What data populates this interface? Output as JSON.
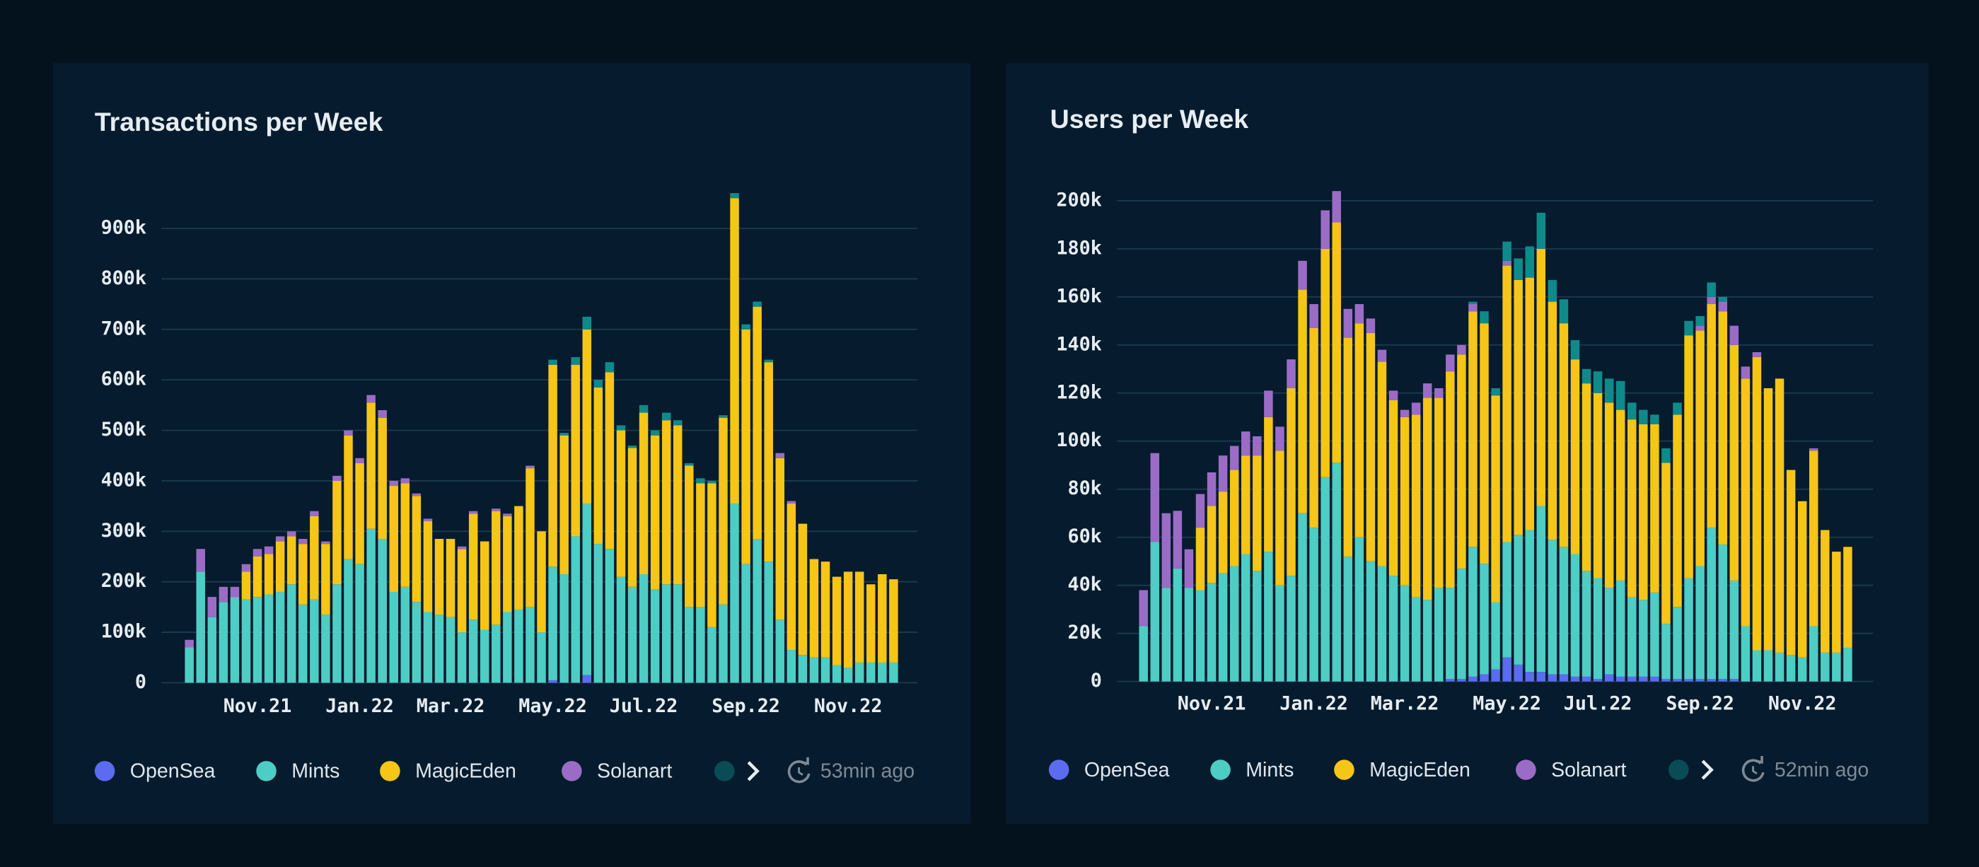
{
  "chart_data": [
    {
      "type": "bar",
      "stacked": true,
      "title": "Transactions per Week",
      "updated": "53min ago",
      "categories": [
        null,
        null,
        null,
        "Nov.21",
        null,
        null,
        null,
        null,
        null,
        null,
        null,
        null,
        "Jan.22",
        null,
        null,
        null,
        null,
        null,
        null,
        null,
        "Mar.22",
        null,
        null,
        null,
        null,
        null,
        null,
        null,
        null,
        "May.22",
        null,
        null,
        null,
        null,
        null,
        null,
        null,
        "Jul.22",
        null,
        null,
        null,
        null,
        null,
        null,
        null,
        null,
        "Sep.22",
        null,
        null,
        null,
        null,
        null,
        null,
        null,
        null,
        "Nov.22",
        null,
        null,
        null,
        null,
        null,
        null,
        null
      ],
      "ylim": [
        0,
        1000000
      ],
      "yticks": [
        0,
        {
          "value": 100000,
          "label": "100k"
        },
        {
          "value": 200000,
          "label": "200k"
        },
        {
          "value": 300000,
          "label": "300k"
        },
        {
          "value": 400000,
          "label": "400k"
        },
        {
          "value": 500000,
          "label": "500k"
        },
        {
          "value": 600000,
          "label": "600k"
        },
        {
          "value": 700000,
          "label": "700k"
        },
        {
          "value": 800000,
          "label": "800k"
        },
        {
          "value": 900000,
          "label": "900k"
        }
      ],
      "grid": true,
      "series": [
        {
          "name": "OpenSea",
          "color": "#5b6cf0",
          "values": [
            0,
            0,
            0,
            0,
            0,
            0,
            0,
            0,
            0,
            0,
            0,
            0,
            0,
            0,
            0,
            0,
            0,
            0,
            0,
            0,
            0,
            0,
            0,
            0,
            0,
            0,
            0,
            0,
            0,
            0,
            0,
            0,
            5000,
            0,
            0,
            15000,
            0,
            0,
            0,
            0,
            0,
            0,
            0,
            0,
            0,
            0,
            0,
            0,
            0,
            0,
            0,
            0,
            0,
            0,
            0,
            0,
            0,
            0,
            0,
            0,
            0,
            0,
            0
          ]
        },
        {
          "name": "Mints",
          "color": "#4ecdc4",
          "values": [
            70000,
            220000,
            130000,
            160000,
            170000,
            165000,
            170000,
            175000,
            180000,
            195000,
            155000,
            165000,
            135000,
            195000,
            245000,
            235000,
            305000,
            285000,
            180000,
            190000,
            160000,
            140000,
            135000,
            130000,
            100000,
            125000,
            105000,
            115000,
            140000,
            145000,
            150000,
            100000,
            225000,
            215000,
            290000,
            340000,
            275000,
            265000,
            210000,
            190000,
            215000,
            185000,
            195000,
            195000,
            150000,
            150000,
            110000,
            155000,
            355000,
            235000,
            285000,
            240000,
            125000,
            65000,
            55000,
            50000,
            50000,
            35000,
            30000,
            40000,
            40000,
            40000,
            40000
          ]
        },
        {
          "name": "MagicEden",
          "color": "#f5c518",
          "values": [
            0,
            0,
            0,
            0,
            0,
            55000,
            80000,
            80000,
            100000,
            95000,
            120000,
            165000,
            140000,
            205000,
            245000,
            200000,
            250000,
            240000,
            210000,
            205000,
            210000,
            180000,
            150000,
            155000,
            165000,
            210000,
            175000,
            225000,
            190000,
            205000,
            275000,
            200000,
            400000,
            275000,
            340000,
            345000,
            310000,
            350000,
            290000,
            275000,
            320000,
            305000,
            325000,
            315000,
            280000,
            245000,
            285000,
            370000,
            605000,
            465000,
            460000,
            395000,
            320000,
            290000,
            260000,
            195000,
            190000,
            175000,
            190000,
            180000,
            155000,
            175000,
            165000
          ]
        },
        {
          "name": "Solanart",
          "color": "#9b6cc6",
          "values": [
            15000,
            45000,
            40000,
            30000,
            20000,
            15000,
            15000,
            15000,
            10000,
            10000,
            10000,
            10000,
            5000,
            10000,
            10000,
            10000,
            15000,
            15000,
            10000,
            10000,
            5000,
            5000,
            0,
            0,
            5000,
            5000,
            0,
            5000,
            5000,
            0,
            5000,
            0,
            0,
            0,
            0,
            0,
            0,
            0,
            0,
            0,
            0,
            0,
            0,
            0,
            0,
            0,
            0,
            0,
            0,
            0,
            0,
            0,
            10000,
            5000,
            0,
            0,
            0,
            0,
            0,
            0,
            0,
            0,
            0
          ]
        },
        {
          "color": "#0f8a8a",
          "values": [
            0,
            0,
            0,
            0,
            0,
            0,
            0,
            0,
            0,
            0,
            0,
            0,
            0,
            0,
            0,
            0,
            0,
            0,
            0,
            0,
            0,
            0,
            0,
            0,
            0,
            0,
            0,
            0,
            0,
            0,
            0,
            0,
            10000,
            5000,
            15000,
            25000,
            15000,
            20000,
            10000,
            5000,
            15000,
            10000,
            15000,
            10000,
            5000,
            10000,
            5000,
            5000,
            10000,
            10000,
            10000,
            5000,
            0,
            0,
            0,
            0,
            0,
            0,
            0,
            0,
            0,
            0,
            0
          ]
        }
      ]
    },
    {
      "type": "bar",
      "stacked": true,
      "title": "Users per Week",
      "updated": "52min ago",
      "categories": [
        null,
        null,
        null,
        "Nov.21",
        null,
        null,
        null,
        null,
        null,
        null,
        null,
        null,
        "Jan.22",
        null,
        null,
        null,
        null,
        null,
        null,
        null,
        "Mar.22",
        null,
        null,
        null,
        null,
        null,
        null,
        null,
        null,
        "May.22",
        null,
        null,
        null,
        null,
        null,
        null,
        null,
        "Jul.22",
        null,
        null,
        null,
        null,
        null,
        null,
        null,
        null,
        "Sep.22",
        null,
        null,
        null,
        null,
        null,
        null,
        null,
        null,
        "Nov.22",
        null,
        null,
        null,
        null,
        null,
        null,
        null
      ],
      "ylim": [
        0,
        210000
      ],
      "yticks": [
        0,
        {
          "value": 20000,
          "label": "20k"
        },
        {
          "value": 40000,
          "label": "40k"
        },
        {
          "value": 60000,
          "label": "60k"
        },
        {
          "value": 80000,
          "label": "80k"
        },
        {
          "value": 100000,
          "label": "100k"
        },
        {
          "value": 120000,
          "label": "120k"
        },
        {
          "value": 140000,
          "label": "140k"
        },
        {
          "value": 160000,
          "label": "160k"
        },
        {
          "value": 180000,
          "label": "180k"
        },
        {
          "value": 200000,
          "label": "200k"
        }
      ],
      "grid": true,
      "series": [
        {
          "name": "OpenSea",
          "color": "#5b6cf0",
          "values": [
            0,
            0,
            0,
            0,
            0,
            0,
            0,
            0,
            0,
            0,
            0,
            0,
            0,
            0,
            0,
            0,
            0,
            0,
            0,
            0,
            0,
            0,
            0,
            0,
            0,
            0,
            0,
            1000,
            1000,
            2000,
            3000,
            5000,
            10000,
            7000,
            4000,
            4000,
            3000,
            3000,
            2000,
            2000,
            1000,
            3000,
            2000,
            2000,
            2000,
            2000,
            1000,
            1000,
            1000,
            1000,
            1000,
            1000,
            1000,
            0,
            0,
            0,
            0,
            0,
            0,
            0,
            0,
            0,
            0
          ]
        },
        {
          "name": "Mints",
          "color": "#4ecdc4",
          "values": [
            23000,
            58000,
            39000,
            47000,
            39000,
            38000,
            41000,
            45000,
            48000,
            53000,
            46000,
            54000,
            40000,
            44000,
            70000,
            64000,
            85000,
            91000,
            52000,
            60000,
            50000,
            48000,
            44000,
            40000,
            35000,
            34000,
            39000,
            38000,
            46000,
            54000,
            46000,
            28000,
            48000,
            54000,
            59000,
            69000,
            56000,
            53000,
            51000,
            44000,
            42000,
            36000,
            40000,
            33000,
            32000,
            35000,
            23000,
            30000,
            42000,
            47000,
            63000,
            56000,
            41000,
            23000,
            13000,
            13000,
            12000,
            11000,
            10000,
            23000,
            12000,
            12000,
            14000
          ]
        },
        {
          "name": "MagicEden",
          "color": "#f5c518",
          "values": [
            0,
            0,
            0,
            0,
            0,
            26000,
            32000,
            34000,
            40000,
            41000,
            48000,
            56000,
            56000,
            78000,
            93000,
            83000,
            95000,
            100000,
            91000,
            89000,
            95000,
            85000,
            73000,
            70000,
            76000,
            84000,
            79000,
            90000,
            89000,
            98000,
            100000,
            86000,
            115000,
            106000,
            105000,
            107000,
            99000,
            93000,
            81000,
            78000,
            77000,
            77000,
            71000,
            74000,
            73000,
            70000,
            67000,
            80000,
            101000,
            98000,
            93000,
            97000,
            98000,
            103000,
            122000,
            109000,
            114000,
            77000,
            65000,
            73000,
            51000,
            42000,
            42000
          ]
        },
        {
          "name": "Solanart",
          "color": "#9b6cc6",
          "values": [
            15000,
            37000,
            31000,
            24000,
            16000,
            14000,
            14000,
            15000,
            10000,
            10000,
            8000,
            11000,
            10000,
            12000,
            12000,
            10000,
            16000,
            13000,
            12000,
            8000,
            6000,
            5000,
            4000,
            3000,
            5000,
            6000,
            4000,
            7000,
            4000,
            3000,
            0,
            0,
            2000,
            0,
            0,
            0,
            0,
            0,
            0,
            0,
            0,
            0,
            0,
            0,
            0,
            0,
            0,
            0,
            0,
            2000,
            3000,
            4000,
            8000,
            5000,
            2000,
            0,
            0,
            0,
            0,
            1000,
            0,
            0,
            0
          ]
        },
        {
          "color": "#0f8a8a",
          "values": [
            0,
            0,
            0,
            0,
            0,
            0,
            0,
            0,
            0,
            0,
            0,
            0,
            0,
            0,
            0,
            0,
            0,
            0,
            0,
            0,
            0,
            0,
            0,
            0,
            0,
            0,
            0,
            0,
            0,
            1000,
            5000,
            3000,
            8000,
            9000,
            13000,
            15000,
            9000,
            10000,
            8000,
            6000,
            9000,
            10000,
            12000,
            7000,
            6000,
            4000,
            6000,
            5000,
            6000,
            4000,
            6000,
            2000,
            0,
            0,
            0,
            0,
            0,
            0,
            0,
            0,
            0,
            0,
            0
          ]
        }
      ]
    }
  ]
}
